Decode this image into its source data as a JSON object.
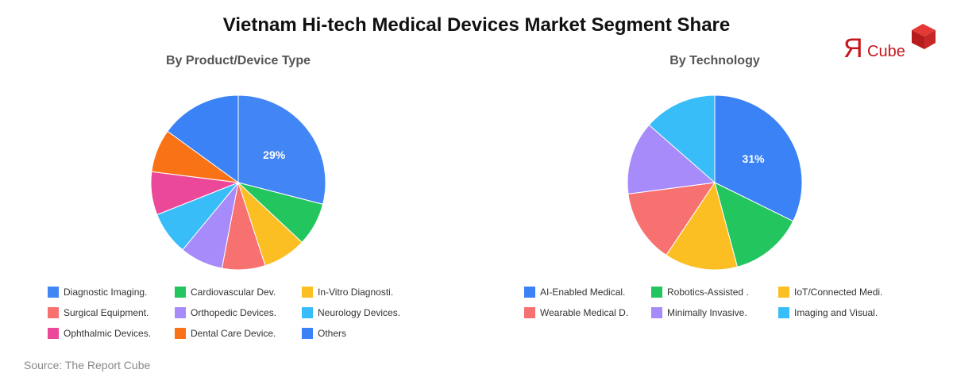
{
  "title": "Vietnam Hi-tech Medical Devices Market Segment Share",
  "source": "Source: The Report Cube",
  "logo": {
    "r_letter": "Я",
    "word": "Cube"
  },
  "chart_data": [
    {
      "type": "pie",
      "title": "By Product/Device Type",
      "labels": [
        "Diagnostic Imaging.",
        "Cardiovascular Dev.",
        "In-Vitro Diagnosti.",
        "Surgical Equipment.",
        "Orthopedic Devices.",
        "Neurology Devices.",
        "Ophthalmic Devices.",
        "Dental Care Device.",
        "Others"
      ],
      "values": [
        29,
        8,
        8,
        8,
        8,
        8,
        8,
        8,
        15
      ],
      "slice_order": [
        "Diagnostic Imaging.",
        "Cardiovascular Dev.",
        "In-Vitro Diagnosti.",
        "Surgical Equipment.",
        "Orthopedic Devices.",
        "Neurology Devices.",
        "Ophthalmic Devices.",
        "Dental Care Device.",
        "Others"
      ],
      "colors": [
        "#4285f4",
        "#22c55e",
        "#fbbf24",
        "#f87171",
        "#a78bfa",
        "#38bdf8",
        "#ec4899",
        "#f97316",
        "#3b82f6"
      ],
      "data_labels": [
        "29%"
      ],
      "legend_position": "bottom"
    },
    {
      "type": "pie",
      "title": "By Technology",
      "labels": [
        "AI-Enabled Medical.",
        "Robotics-Assisted .",
        "IoT/Connected Medi.",
        "Wearable Medical D.",
        "Minimally Invasive.",
        "Imaging and Visual."
      ],
      "values": [
        31,
        13,
        13,
        13,
        13,
        13
      ],
      "colors": [
        "#3b82f6",
        "#22c55e",
        "#fbbf24",
        "#f87171",
        "#a78bfa",
        "#38bdf8"
      ],
      "data_labels": [
        "31%"
      ],
      "legend_position": "bottom"
    }
  ]
}
